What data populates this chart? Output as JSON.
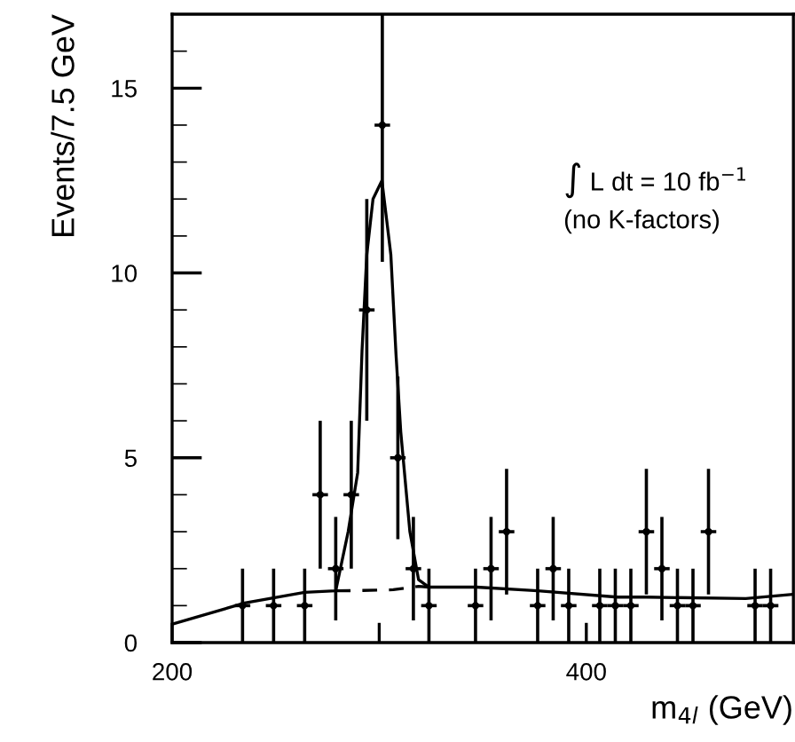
{
  "chart_data": {
    "type": "scatter",
    "xlabel": "m$_{4l}$ (GeV)",
    "ylabel": "Events/7.5 GeV",
    "annotations": [
      "∫ L dt = 10 fb$^{−1}$",
      "(no K-factors)"
    ],
    "xlim": [
      200,
      500
    ],
    "xticks": [
      200,
      {
        "value": 300,
        "label": null
      },
      400
    ],
    "ylim": [
      0,
      17
    ],
    "yticks": [
      0,
      5,
      10,
      15
    ],
    "grid": false,
    "legend": false,
    "series": [
      {
        "color": "#000000",
        "marker": "circle",
        "x": [
          234,
          249,
          264,
          271.5,
          279,
          286.5,
          294,
          301.5,
          309,
          316.5,
          324,
          346.5,
          354,
          361.5,
          376.5,
          384,
          391.5,
          406.5,
          414,
          421.5,
          429,
          436.5,
          444,
          451.5,
          459,
          481.5,
          489
        ],
        "values": [
          1,
          1,
          1,
          4,
          2,
          4,
          9,
          14,
          5,
          2,
          1,
          1,
          2,
          3,
          1,
          2,
          1,
          1,
          1,
          1,
          3,
          2,
          1,
          1,
          3,
          1,
          1
        ],
        "errors": [
          1,
          1,
          1,
          2,
          1.4,
          2,
          3,
          [
            10.3,
            17
          ],
          2.2,
          1.4,
          1,
          1,
          1.4,
          1.7,
          1,
          1.4,
          1,
          1,
          1,
          1,
          1.7,
          1.4,
          1,
          1,
          1.7,
          1,
          1
        ],
        "xerrors": [
          3.75,
          3.75,
          3.75,
          3.75,
          3.75,
          3.75,
          3.75,
          3.75,
          3.75,
          3.75,
          3.75,
          3.75,
          3.75,
          3.75,
          3.75,
          3.75,
          3.75,
          3.75,
          3.75,
          3.75,
          3.75,
          3.75,
          3.75,
          3.75,
          3.75,
          3.75,
          3.75
        ]
      },
      {
        "type": "line",
        "color": "#000000",
        "line_style": "solid",
        "x": [
          200,
          235,
          264,
          279,
          285,
          289.6,
          291.7,
          294,
          297,
          301.3,
          305.6,
          308.1,
          310.4,
          314.8,
          319,
          324,
          347,
          376.5,
          415,
          429,
          477,
          499
        ],
        "values": [
          0.5,
          1.07,
          1.36,
          1.4,
          3,
          4.6,
          7.9,
          10.5,
          12,
          12.5,
          10.5,
          7.8,
          5.7,
          3,
          1.7,
          1.5,
          1.5,
          1.4,
          1.23,
          1.23,
          1.19,
          1.3
        ]
      },
      {
        "type": "line",
        "color": "#000000",
        "line_style": "dashed",
        "x": [
          279,
          292,
          306.8,
          319,
          324
        ],
        "values": [
          1.4,
          1.41,
          1.43,
          1.52,
          1.5
        ]
      }
    ]
  }
}
